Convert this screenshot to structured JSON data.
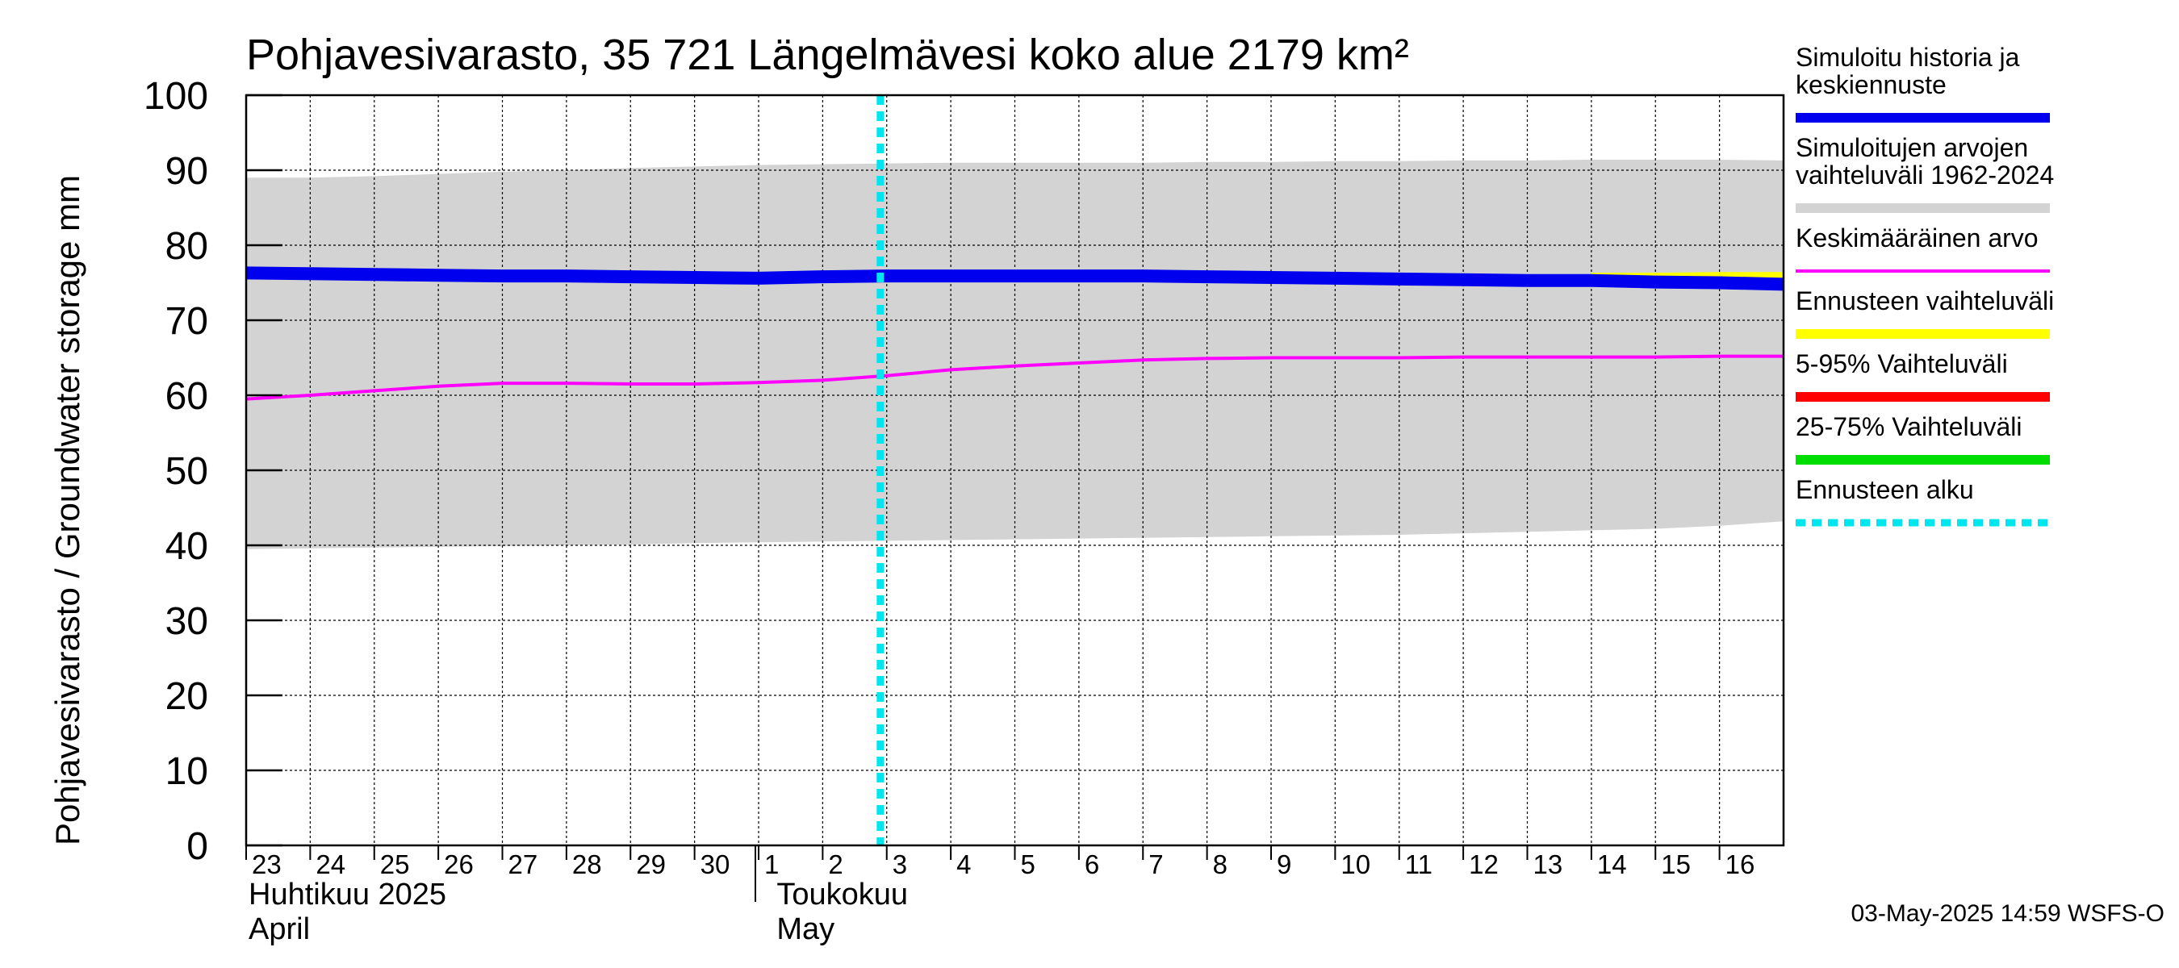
{
  "chart_data": {
    "type": "line",
    "title": "Pohjavesivarasto, 35 721 Längelmävesi koko alue 2179 km²",
    "ylabel": "Pohjavesivarasto / Groundwater storage   mm",
    "ylim": [
      0,
      100
    ],
    "yticks": [
      0,
      10,
      20,
      30,
      40,
      50,
      60,
      70,
      80,
      90,
      100
    ],
    "x_day_labels": [
      "23",
      "24",
      "25",
      "26",
      "27",
      "28",
      "29",
      "30",
      "1",
      "2",
      "3",
      "4",
      "5",
      "6",
      "7",
      "8",
      "9",
      "10",
      "11",
      "12",
      "13",
      "14",
      "15",
      "16"
    ],
    "month_labels": [
      {
        "fi": "Huhtikuu  2025",
        "en": "April"
      },
      {
        "fi": "Toukokuu",
        "en": "May"
      }
    ],
    "forecast_start_day_index": 9.9,
    "series": [
      {
        "name": "Simuloitujen arvojen vaihteluväli 1962-2024",
        "kind": "band",
        "color": "#d3d3d3",
        "upper": [
          89,
          89,
          89.2,
          89.5,
          89.8,
          90,
          90.3,
          90.5,
          90.7,
          90.8,
          90.9,
          91,
          91,
          91,
          91,
          91.1,
          91.1,
          91.2,
          91.2,
          91.3,
          91.3,
          91.4,
          91.4,
          91.4,
          91.3
        ],
        "lower": [
          39.5,
          39.6,
          39.7,
          39.8,
          39.9,
          40,
          40.1,
          40.3,
          40.4,
          40.5,
          40.6,
          40.7,
          40.8,
          40.9,
          41,
          41.1,
          41.2,
          41.3,
          41.4,
          41.6,
          41.8,
          42,
          42.2,
          42.6,
          43.2
        ]
      },
      {
        "name": "Keskimääräinen arvo",
        "kind": "line",
        "color": "#ff00ff",
        "values": [
          59.5,
          60,
          60.6,
          61.2,
          61.6,
          61.6,
          61.5,
          61.5,
          61.7,
          62,
          62.6,
          63.4,
          63.9,
          64.3,
          64.7,
          64.9,
          65,
          65,
          65,
          65.1,
          65.1,
          65.1,
          65.1,
          65.2,
          65.2
        ]
      },
      {
        "name": "Ennusteen vaihteluväli",
        "kind": "line",
        "color": "#ffff00",
        "values": [
          null,
          null,
          null,
          null,
          null,
          null,
          null,
          null,
          null,
          null,
          null,
          null,
          null,
          null,
          null,
          null,
          null,
          null,
          null,
          null,
          null,
          75.9,
          75.9,
          76,
          76
        ]
      },
      {
        "name": "Simuloitu historia ja keskiennuste",
        "kind": "line",
        "color": "#0000ee",
        "values": [
          76.3,
          76.2,
          76.1,
          76,
          75.9,
          75.9,
          75.8,
          75.7,
          75.6,
          75.8,
          75.9,
          75.9,
          75.9,
          75.9,
          75.9,
          75.8,
          75.7,
          75.6,
          75.5,
          75.4,
          75.3,
          75.3,
          75.1,
          75,
          74.8
        ]
      }
    ],
    "legend": [
      {
        "lines": [
          "Simuloitu historia ja",
          "keskiennuste"
        ],
        "color": "#0000ee",
        "style": "thick"
      },
      {
        "lines": [
          "Simuloitujen arvojen",
          "vaihteluväli 1962-2024"
        ],
        "color": "#d3d3d3",
        "style": "thick"
      },
      {
        "lines": [
          "Keskimääräinen arvo"
        ],
        "color": "#ff00ff",
        "style": "thin"
      },
      {
        "lines": [
          "Ennusteen vaihteluväli"
        ],
        "color": "#ffff00",
        "style": "thick"
      },
      {
        "lines": [
          "5-95% Vaihteluväli"
        ],
        "color": "#ff0000",
        "style": "thick"
      },
      {
        "lines": [
          "25-75% Vaihteluväli"
        ],
        "color": "#00dd00",
        "style": "thick"
      },
      {
        "lines": [
          "Ennusteen alku"
        ],
        "color": "#00e5ee",
        "style": "dashed"
      }
    ],
    "footer": "03-May-2025 14:59 WSFS-O"
  }
}
